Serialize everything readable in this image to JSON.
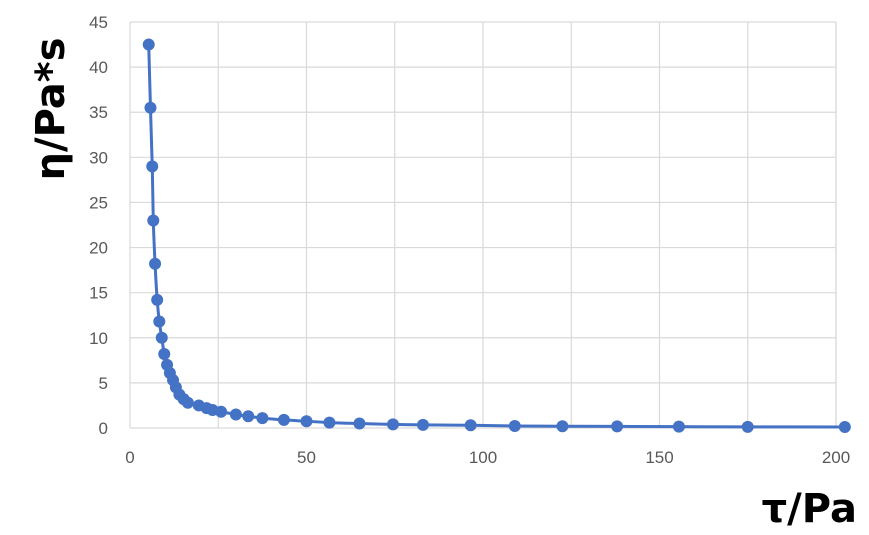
{
  "chart_data": {
    "type": "scatter",
    "title": "",
    "xlabel": "τ/Pa",
    "ylabel": "η/Pa*s",
    "xlim": [
      0,
      200
    ],
    "ylim": [
      0,
      45
    ],
    "x_ticks": [
      "0",
      "50",
      "100",
      "150",
      "200"
    ],
    "y_ticks": [
      "0",
      "5",
      "10",
      "15",
      "20",
      "25",
      "30",
      "35",
      "40",
      "45"
    ],
    "grid": true,
    "legend": "none",
    "series": [
      {
        "color": "#4472c4",
        "marker": "circle",
        "line": "smooth",
        "x": [
          5.3,
          5.8,
          6.3,
          6.6,
          7.1,
          7.7,
          8.3,
          9.0,
          9.7,
          10.5,
          11.3,
          12.2,
          13.0,
          14.0,
          15.2,
          16.4,
          19.5,
          21.7,
          23.4,
          25.8,
          30.0,
          33.5,
          37.5,
          43.6,
          50.0,
          56.5,
          65.0,
          74.5,
          83.0,
          96.5,
          109.0,
          122.5,
          138.0,
          155.5,
          175.0,
          202.5
        ],
        "y": [
          42.5,
          35.5,
          29.0,
          23.0,
          18.2,
          14.2,
          11.8,
          10.0,
          8.2,
          7.0,
          6.1,
          5.3,
          4.5,
          3.7,
          3.2,
          2.8,
          2.5,
          2.2,
          2.0,
          1.8,
          1.5,
          1.3,
          1.1,
          0.9,
          0.75,
          0.6,
          0.5,
          0.4,
          0.35,
          0.3,
          0.22,
          0.2,
          0.18,
          0.15,
          0.13,
          0.11
        ]
      }
    ]
  }
}
